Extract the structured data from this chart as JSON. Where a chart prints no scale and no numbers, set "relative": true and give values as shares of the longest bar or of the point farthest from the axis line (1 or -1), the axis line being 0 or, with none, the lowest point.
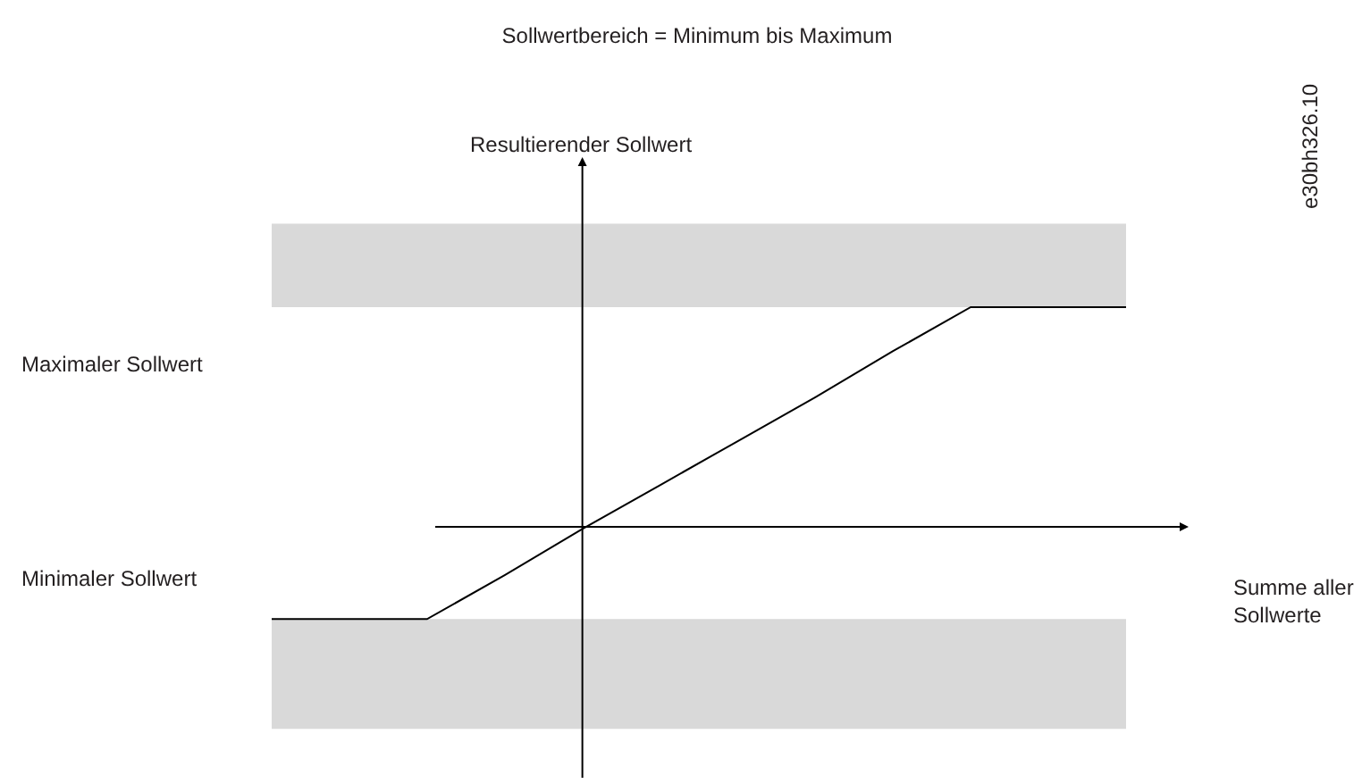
{
  "chart_data": {
    "type": "line",
    "relative": true,
    "title": "Sollwertbereich = Minimum bis Maximum",
    "categories": [
      null,
      null,
      null,
      null,
      null,
      null,
      null,
      null,
      null,
      null,
      null,
      null
    ],
    "series": [
      {
        "color": "#000000",
        "values": [
          -0.42,
          -0.42,
          -0.42,
          -0.22,
          -0.01,
          0.19,
          0.39,
          0.59,
          0.8,
          1,
          1,
          1
        ]
      }
    ],
    "bands": [
      {
        "axis": "y",
        "from": 1.0,
        "to": 1.38,
        "color": "#d9d9d9"
      },
      {
        "axis": "y",
        "from": -0.92,
        "to": -0.42,
        "color": "#d9d9d9"
      }
    ],
    "annotations": [
      "Resultierender Sollwert",
      "Summe aller Sollwerte",
      "e30bh326.10",
      "Maximaler Sollwert",
      "Minimaler Sollwert"
    ],
    "marker": "none",
    "line_style": "solid",
    "grid": false
  }
}
